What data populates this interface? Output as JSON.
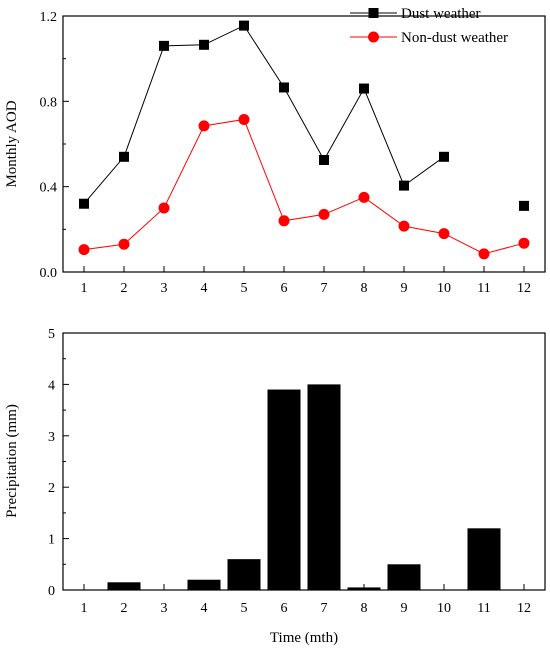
{
  "chart_data": [
    {
      "type": "line",
      "xlabel": "",
      "ylabel": "Monthly AOD",
      "categories": [
        "1",
        "2",
        "3",
        "4",
        "5",
        "6",
        "7",
        "8",
        "9",
        "10",
        "11",
        "12"
      ],
      "ylim": [
        0,
        1.2
      ],
      "yticks": [
        "0.0",
        "0.4",
        "0.8",
        "1.2"
      ],
      "legend_position": "top-right",
      "grid": false,
      "series": [
        {
          "name": "Dust weather",
          "color": "#000000",
          "marker": "square",
          "values": [
            0.32,
            0.54,
            1.06,
            1.065,
            1.155,
            0.865,
            0.525,
            0.86,
            0.405,
            0.54,
            null,
            0.31
          ]
        },
        {
          "name": "Non-dust weather",
          "color": "#ff0000",
          "marker": "circle",
          "values": [
            0.105,
            0.13,
            0.3,
            0.685,
            0.715,
            0.24,
            0.27,
            0.35,
            0.215,
            0.18,
            0.085,
            0.135
          ]
        }
      ]
    },
    {
      "type": "bar",
      "xlabel": "Time (mth)",
      "ylabel": "Precipitation (mm)",
      "categories": [
        "1",
        "2",
        "3",
        "4",
        "5",
        "6",
        "7",
        "8",
        "9",
        "10",
        "11",
        "12"
      ],
      "ylim": [
        0,
        5
      ],
      "yticks": [
        "0",
        "1",
        "2",
        "3",
        "4",
        "5"
      ],
      "grid": false,
      "color": "#000000",
      "values": [
        0,
        0.15,
        0,
        0.2,
        0.6,
        3.9,
        4.0,
        0.05,
        0.5,
        0,
        1.2,
        0
      ]
    }
  ]
}
